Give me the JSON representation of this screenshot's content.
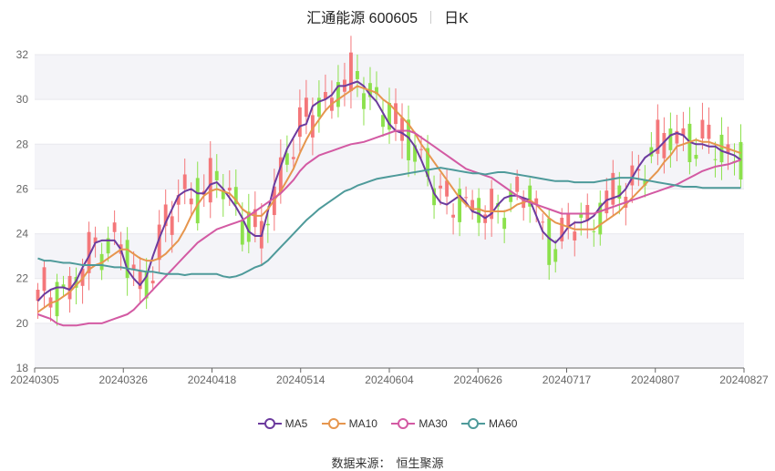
{
  "title": {
    "name": "汇通能源 600605",
    "period": "日K"
  },
  "source": {
    "label": "数据来源：",
    "value": "恒生聚源"
  },
  "chart_data": {
    "type": "candlestick",
    "ylim": [
      18,
      32
    ],
    "yticks": [
      18,
      20,
      22,
      24,
      26,
      28,
      30,
      32
    ],
    "xticks": [
      "20240305",
      "20240326",
      "20240418",
      "20240514",
      "20240604",
      "20240626",
      "20240717",
      "20240807",
      "20240827"
    ],
    "colors": {
      "up": "#f4777a",
      "down": "#8ce14c",
      "grid": "#e8e8ee",
      "band": "#f4f4f8"
    },
    "series": [
      {
        "name": "MA5",
        "color": "#6c3b9e",
        "values": [
          21.0,
          21.3,
          21.5,
          21.6,
          21.6,
          21.5,
          21.9,
          22.5,
          23.0,
          23.6,
          23.7,
          23.7,
          23.7,
          23.3,
          22.4,
          22.0,
          21.7,
          22.1,
          23.0,
          23.8,
          24.5,
          25.1,
          25.7,
          25.9,
          26.0,
          25.8,
          25.8,
          26.2,
          26.3,
          26.0,
          25.6,
          25.2,
          24.7,
          24.1,
          23.9,
          23.9,
          25.0,
          26.2,
          27.0,
          27.8,
          28.3,
          28.8,
          28.9,
          29.7,
          29.9,
          30.0,
          30.2,
          30.6,
          30.6,
          30.7,
          30.8,
          30.6,
          30.2,
          29.9,
          29.4,
          28.9,
          28.6,
          28.5,
          28.3,
          27.9,
          27.3,
          26.6,
          25.8,
          25.4,
          25.3,
          25.5,
          25.7,
          25.4,
          25.0,
          24.9,
          24.7,
          24.9,
          25.3,
          25.6,
          25.7,
          25.7,
          25.6,
          25.5,
          24.8,
          24.1,
          23.8,
          23.6,
          23.9,
          24.3,
          24.5,
          24.5,
          24.6,
          24.8,
          25.2,
          25.5,
          25.6,
          25.7,
          26.0,
          26.5,
          27.0,
          27.4,
          27.6,
          27.8,
          28.1,
          28.4,
          28.5,
          28.4,
          28.1,
          28.0,
          28.0,
          27.9,
          27.9,
          27.7,
          27.6,
          27.5,
          27.3
        ]
      },
      {
        "name": "MA10",
        "color": "#e6964e",
        "values": [
          20.5,
          20.7,
          20.9,
          21.0,
          21.2,
          21.4,
          21.7,
          22.0,
          22.4,
          22.6,
          22.7,
          22.9,
          23.1,
          23.3,
          23.3,
          23.1,
          22.9,
          22.8,
          22.8,
          22.9,
          23.1,
          23.4,
          23.7,
          24.2,
          24.8,
          25.3,
          25.7,
          25.9,
          26.0,
          25.9,
          25.8,
          25.5,
          25.1,
          24.9,
          24.8,
          24.8,
          25.1,
          25.5,
          25.9,
          26.4,
          26.9,
          27.6,
          28.2,
          28.7,
          29.1,
          29.5,
          29.8,
          30.0,
          30.2,
          30.4,
          30.6,
          30.5,
          30.4,
          30.3,
          30.0,
          29.8,
          29.5,
          29.2,
          28.9,
          28.5,
          28.0,
          27.6,
          27.2,
          26.8,
          26.4,
          26.0,
          25.6,
          25.3,
          25.1,
          25.1,
          25.0,
          25.0,
          25.0,
          25.0,
          25.1,
          25.3,
          25.4,
          25.5,
          25.3,
          25.0,
          24.7,
          24.5,
          24.4,
          24.3,
          24.2,
          24.2,
          24.2,
          24.2,
          24.4,
          24.6,
          24.8,
          25.0,
          25.3,
          25.6,
          25.9,
          26.2,
          26.5,
          26.8,
          27.2,
          27.5,
          27.9,
          28.0,
          28.1,
          28.2,
          28.1,
          28.1,
          28.0,
          27.9,
          27.8,
          27.7,
          27.6
        ]
      },
      {
        "name": "MA30",
        "color": "#d35aa3",
        "values": [
          20.4,
          20.3,
          20.2,
          20.0,
          19.9,
          19.9,
          19.9,
          19.95,
          20.0,
          20.0,
          20.0,
          20.1,
          20.2,
          20.3,
          20.4,
          20.6,
          20.9,
          21.2,
          21.5,
          21.8,
          22.1,
          22.4,
          22.7,
          23.0,
          23.3,
          23.6,
          23.8,
          24.0,
          24.2,
          24.3,
          24.4,
          24.5,
          24.6,
          24.8,
          25.0,
          25.2,
          25.4,
          25.6,
          25.8,
          26.1,
          26.4,
          26.8,
          27.1,
          27.3,
          27.5,
          27.6,
          27.7,
          27.8,
          27.9,
          28.0,
          28.05,
          28.1,
          28.2,
          28.3,
          28.4,
          28.5,
          28.6,
          28.6,
          28.6,
          28.5,
          28.3,
          28.1,
          27.9,
          27.7,
          27.5,
          27.3,
          27.1,
          26.9,
          26.8,
          26.7,
          26.6,
          26.5,
          26.3,
          26.1,
          25.9,
          25.7,
          25.5,
          25.4,
          25.3,
          25.2,
          25.1,
          25.0,
          24.9,
          24.9,
          24.9,
          24.9,
          24.9,
          24.9,
          25.0,
          25.1,
          25.2,
          25.3,
          25.4,
          25.5,
          25.6,
          25.7,
          25.8,
          25.9,
          26.0,
          26.1,
          26.2,
          26.35,
          26.5,
          26.65,
          26.8,
          26.9,
          27.0,
          27.05,
          27.1,
          27.2,
          27.3
        ]
      },
      {
        "name": "MA60",
        "color": "#4e9a9a",
        "values": [
          22.9,
          22.8,
          22.8,
          22.75,
          22.7,
          22.7,
          22.65,
          22.6,
          22.6,
          22.6,
          22.6,
          22.55,
          22.5,
          22.5,
          22.45,
          22.4,
          22.35,
          22.3,
          22.3,
          22.25,
          22.2,
          22.2,
          22.2,
          22.15,
          22.2,
          22.2,
          22.2,
          22.2,
          22.2,
          22.1,
          22.05,
          22.1,
          22.2,
          22.35,
          22.5,
          22.6,
          22.8,
          23.1,
          23.4,
          23.7,
          24.0,
          24.3,
          24.6,
          24.85,
          25.1,
          25.3,
          25.5,
          25.7,
          25.9,
          26.0,
          26.15,
          26.25,
          26.35,
          26.45,
          26.5,
          26.55,
          26.6,
          26.65,
          26.7,
          26.75,
          26.8,
          26.85,
          26.9,
          26.95,
          26.9,
          26.85,
          26.8,
          26.75,
          26.7,
          26.7,
          26.65,
          26.7,
          26.75,
          26.75,
          26.7,
          26.65,
          26.6,
          26.55,
          26.5,
          26.45,
          26.4,
          26.35,
          26.35,
          26.35,
          26.3,
          26.3,
          26.3,
          26.3,
          26.35,
          26.4,
          26.45,
          26.5,
          26.5,
          26.5,
          26.45,
          26.4,
          26.35,
          26.3,
          26.25,
          26.2,
          26.15,
          26.1,
          26.1,
          26.1,
          26.05,
          26.05,
          26.05,
          26.05,
          26.05,
          26.05,
          26.05
        ]
      }
    ]
  }
}
